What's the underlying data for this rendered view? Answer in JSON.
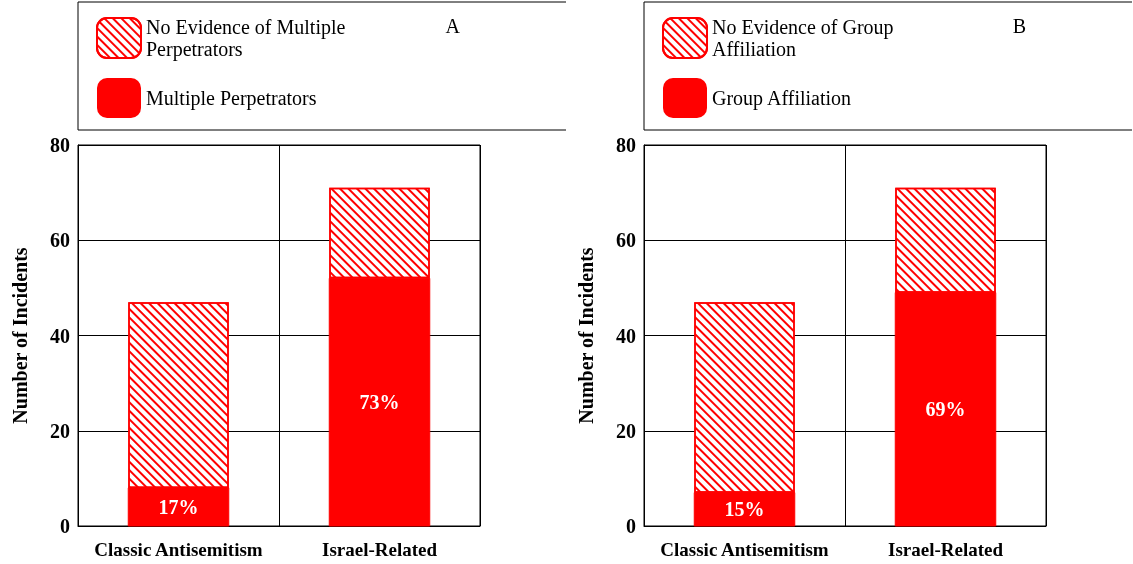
{
  "chart_data": [
    {
      "type": "bar",
      "stacked": true,
      "categories": [
        "Classic Antisemitism",
        "Israel-Related"
      ],
      "ylabel": "Number of Incidents",
      "ylim": [
        0,
        80
      ],
      "yticks": [
        0,
        20,
        40,
        60,
        80
      ],
      "grid": true,
      "legend": "top",
      "annotations": [
        "A",
        "17%",
        "73%"
      ],
      "series": [
        {
          "name": "Multiple Perpetrators",
          "color": "#ff0000",
          "values": [
            8,
            52
          ]
        },
        {
          "name": "No Evidence of Multiple Perpetrators",
          "color": "#ff0000",
          "values": [
            39,
            19
          ]
        }
      ]
    },
    {
      "type": "bar",
      "stacked": true,
      "categories": [
        "Classic Antisemitism",
        "Israel-Related"
      ],
      "ylabel": "Number of Incidents",
      "ylim": [
        0,
        80
      ],
      "yticks": [
        0,
        20,
        40,
        60,
        80
      ],
      "grid": true,
      "legend": "top",
      "annotations": [
        "B",
        "15%",
        "69%"
      ],
      "series": [
        {
          "name": "Group Affiliation",
          "color": "#ff0000",
          "values": [
            7,
            49
          ]
        },
        {
          "name": "No Evidence of Group Affiliation",
          "color": "#ff0000",
          "values": [
            40,
            22
          ]
        }
      ]
    }
  ]
}
